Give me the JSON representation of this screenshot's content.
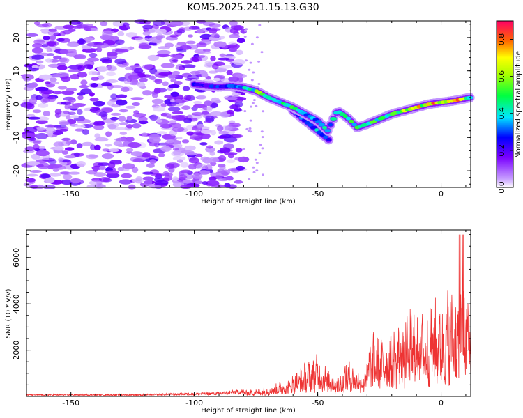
{
  "chart_data": [
    {
      "type": "heatmap",
      "title": "KOM5.2025.241.15.13.G30",
      "xlabel": "Height of straight line (km)",
      "ylabel": "Frequency (Hz)",
      "xlim": [
        -168,
        12
      ],
      "ylim": [
        -25,
        25
      ],
      "xticks": [
        -150,
        -100,
        -50,
        0
      ],
      "xtick_labels": [
        "-150",
        "-100",
        "-50",
        "0"
      ],
      "yticks": [
        -20,
        -10,
        0,
        10,
        20
      ],
      "ytick_labels": [
        "-20",
        "-10",
        "0",
        "10",
        "20"
      ],
      "colorbar": {
        "label": "Normalized spectral amplitude",
        "range": [
          0.0,
          0.9
        ],
        "ticks": [
          0.0,
          0.2,
          0.4,
          0.6,
          0.8
        ],
        "tick_labels": [
          "0.0",
          "0.2",
          "0.4",
          "0.6",
          "0.8"
        ]
      },
      "track": {
        "x": [
          -100,
          -95,
          -90,
          -85,
          -80,
          -75,
          -70,
          -65,
          -60,
          -55,
          -50,
          -46,
          -42,
          -38,
          -34,
          -30,
          -25,
          -20,
          -15,
          -10,
          -5,
          0,
          5,
          12
        ],
        "y": [
          6,
          5.5,
          5.2,
          5.5,
          5,
          4,
          2,
          0.5,
          -1,
          -3,
          -5,
          -8,
          -2,
          -4,
          -7,
          -6,
          -4.5,
          -3,
          -2,
          -1,
          0,
          0.5,
          1,
          2
        ],
        "amp": [
          0.25,
          0.25,
          0.3,
          0.3,
          0.45,
          0.5,
          0.55,
          0.5,
          0.45,
          0.4,
          0.35,
          0.4,
          0.4,
          0.45,
          0.45,
          0.45,
          0.5,
          0.55,
          0.6,
          0.65,
          0.7,
          0.8,
          0.85,
          0.45
        ]
      },
      "side_branch": {
        "x": [
          -60,
          -55,
          -50,
          -45
        ],
        "y": [
          -2,
          -5,
          -8,
          -11
        ],
        "amp": [
          0.35,
          0.35,
          0.35,
          0.3
        ]
      },
      "noise_region_x": [
        -168,
        -80
      ],
      "noise_amp": 0.15
    },
    {
      "type": "line",
      "xlabel": "Height of straight line (km)",
      "ylabel": "SNR (10 * v/v)",
      "xlim": [
        -168,
        12
      ],
      "ylim": [
        0,
        7200
      ],
      "xticks": [
        -150,
        -100,
        -50,
        0
      ],
      "xtick_labels": [
        "-150",
        "-100",
        "-50",
        "0"
      ],
      "yticks": [
        2000,
        4000,
        6000
      ],
      "ytick_labels": [
        "2000",
        "4000",
        "6000"
      ],
      "line_color": "#ee3333",
      "envelope": {
        "x": [
          -168,
          -120,
          -90,
          -80,
          -70,
          -62,
          -55,
          -50,
          -46,
          -42,
          -38,
          -32,
          -28,
          -24,
          -20,
          -15,
          -10,
          -6,
          -3,
          0,
          3,
          6,
          8,
          10,
          12
        ],
        "y": [
          80,
          80,
          150,
          250,
          400,
          700,
          1400,
          1700,
          1200,
          900,
          1500,
          1000,
          2600,
          2400,
          2700,
          3200,
          3900,
          3200,
          4200,
          3600,
          4600,
          4200,
          5800,
          4500,
          4600
        ]
      }
    }
  ]
}
